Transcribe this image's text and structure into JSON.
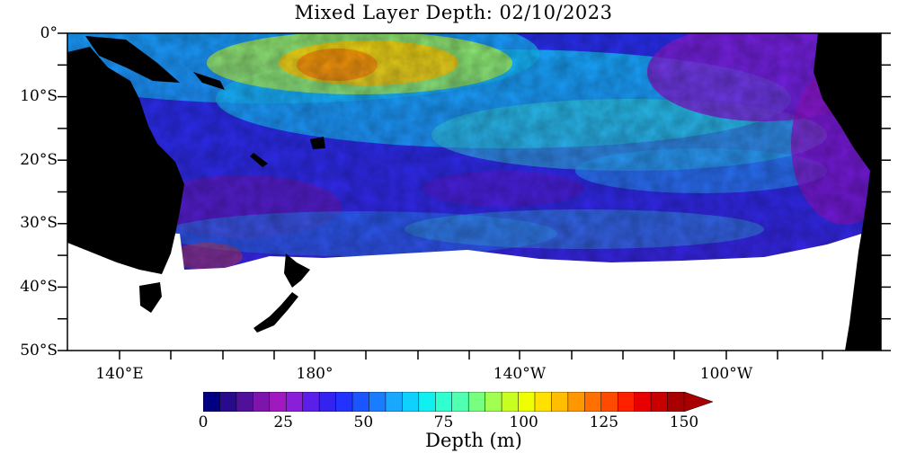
{
  "title": "Mixed Layer Depth: 02/10/2023",
  "lat_labels": [
    "0°",
    "10°S",
    "20°S",
    "30°S",
    "40°S",
    "50°S"
  ],
  "lon_labels": [
    "140°E",
    "180°",
    "140°W",
    "100°W"
  ],
  "colorbar": {
    "title": "Depth (m)",
    "ticks": [
      "0",
      "25",
      "50",
      "75",
      "100",
      "125",
      "150"
    ],
    "min": 0,
    "max": 150,
    "extend": "max",
    "colors": [
      "#000080",
      "#2a0a8c",
      "#50109a",
      "#7d14ab",
      "#a019c0",
      "#8a1ed9",
      "#5a1fe8",
      "#3322f0",
      "#2233ff",
      "#1a55ff",
      "#1a7dff",
      "#18a8ff",
      "#10d0ff",
      "#10f0f0",
      "#30ffd0",
      "#50ffb0",
      "#78ff80",
      "#a0ff50",
      "#c8ff20",
      "#f0ff00",
      "#ffe000",
      "#ffbf00",
      "#ff9800",
      "#ff7000",
      "#ff4a00",
      "#ff2000",
      "#e80000",
      "#c80000",
      "#a80000"
    ]
  },
  "colors": {
    "land": "#000000",
    "no_data": "#ffffff",
    "frame": "#000000"
  }
}
